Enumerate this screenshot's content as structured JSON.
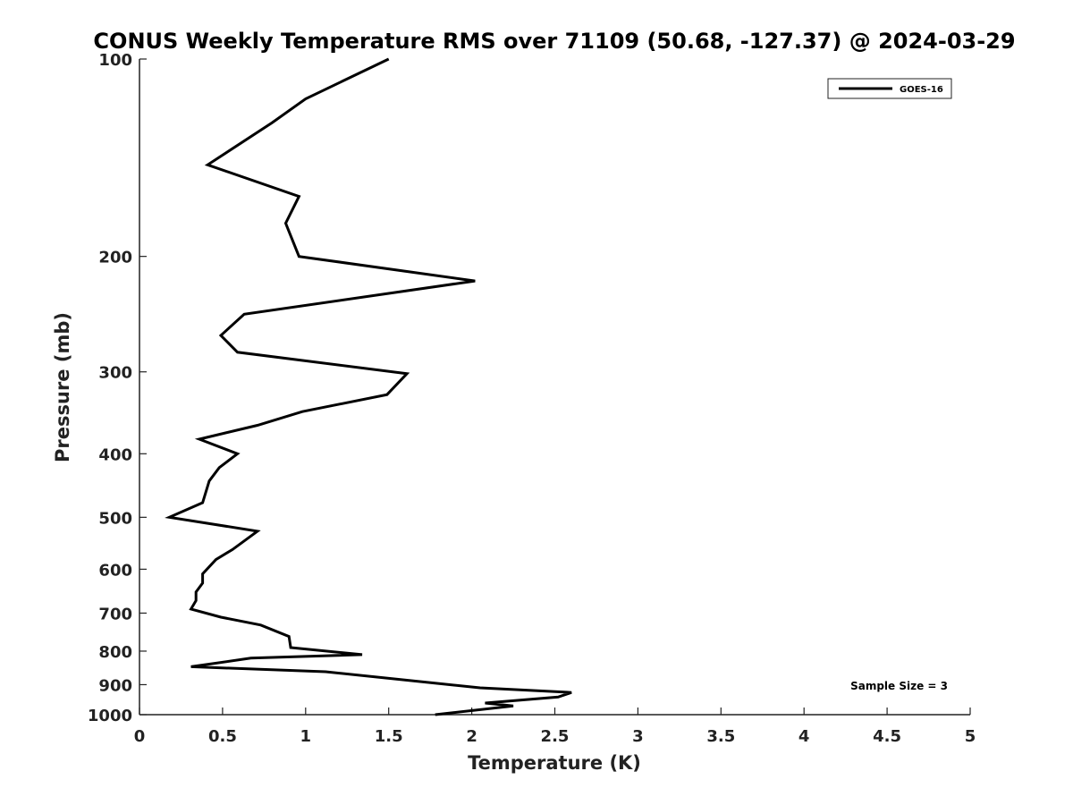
{
  "chart_data": {
    "type": "line",
    "title": "CONUS Weekly Temperature RMS over 71109 (50.68, -127.37) @ 2024-03-29",
    "xlabel": "Temperature (K)",
    "ylabel": "Pressure (mb)",
    "xlim": [
      0,
      5
    ],
    "ylim": [
      100,
      1000
    ],
    "y_scale": "log",
    "y_reversed": true,
    "x_ticks": [
      "0",
      "0.5",
      "1",
      "1.5",
      "2",
      "2.5",
      "3",
      "3.5",
      "4",
      "4.5",
      "5"
    ],
    "y_ticks": [
      "100",
      "200",
      "300",
      "400",
      "500",
      "600",
      "700",
      "800",
      "900",
      "1000"
    ],
    "grid": false,
    "legend": {
      "position": "top-right",
      "entries": [
        "GOES-16"
      ]
    },
    "annotation": "Sample Size = 3",
    "series": [
      {
        "name": "GOES-16",
        "color": "#000000",
        "x": [
          1.5,
          1.0,
          0.8,
          0.41,
          0.96,
          0.88,
          0.96,
          2.02,
          0.63,
          0.49,
          0.59,
          1.61,
          1.49,
          0.98,
          0.71,
          0.36,
          0.59,
          0.48,
          0.42,
          0.38,
          0.18,
          0.71,
          0.56,
          0.46,
          0.38,
          0.38,
          0.34,
          0.34,
          0.31,
          0.49,
          0.73,
          0.9,
          0.91,
          1.34,
          0.67,
          0.31,
          1.12,
          2.05,
          2.6,
          2.52,
          2.08,
          2.25,
          1.78
        ],
        "y": [
          100,
          115,
          125,
          145,
          162,
          178,
          200,
          218,
          245,
          264,
          280,
          302,
          325,
          345,
          362,
          380,
          400,
          420,
          440,
          475,
          500,
          525,
          560,
          580,
          610,
          630,
          650,
          670,
          690,
          710,
          730,
          760,
          790,
          810,
          820,
          845,
          860,
          910,
          925,
          940,
          960,
          970,
          1000
        ]
      }
    ]
  }
}
